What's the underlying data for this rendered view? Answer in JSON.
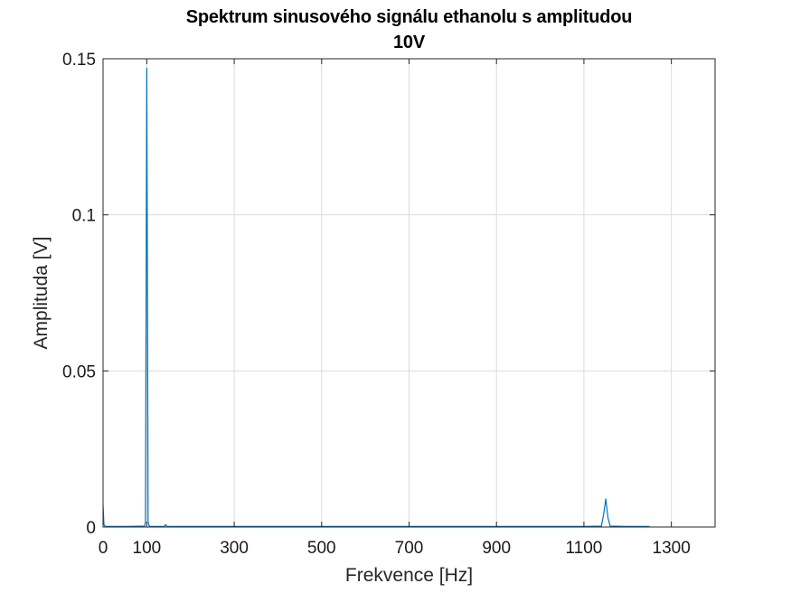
{
  "chart_data": {
    "type": "line",
    "title_line1": "Spektrum sinusového signálu ethanolu s amplitudou",
    "title_line2": "10V",
    "xlabel": "Frekvence [Hz]",
    "ylabel": "Amplituda [V]",
    "xlim": [
      0,
      1400
    ],
    "ylim": [
      0,
      0.15
    ],
    "xticks": [
      0,
      100,
      300,
      500,
      700,
      900,
      1100,
      1300
    ],
    "yticks": [
      0,
      0.05,
      0.1,
      0.15
    ],
    "xtick_labels": [
      "0",
      "100",
      "300",
      "500",
      "700",
      "900",
      "1100",
      "1300"
    ],
    "ytick_labels": [
      "0",
      "0.05",
      "0.1",
      "0.15"
    ],
    "grid": true,
    "series": [
      {
        "color": "#0072BD",
        "x": [
          0,
          2,
          4,
          6,
          50,
          95,
          97,
          98,
          100,
          102,
          103,
          105,
          108,
          140,
          143,
          146,
          200,
          300,
          400,
          500,
          600,
          700,
          800,
          900,
          1000,
          1100,
          1140,
          1145,
          1150,
          1155,
          1160,
          1200,
          1250
        ],
        "y": [
          0.007,
          0.0008,
          0.0003,
          0.0002,
          0.0002,
          0.0003,
          0.0015,
          0.05,
          0.147,
          0.06,
          0.002,
          0.0004,
          0.0002,
          0.0002,
          0.0008,
          0.0002,
          0.0002,
          0.0002,
          0.0002,
          0.0002,
          0.0002,
          0.0002,
          0.0002,
          0.0002,
          0.0002,
          0.0002,
          0.0003,
          0.004,
          0.009,
          0.003,
          0.0003,
          0.0002,
          0.0002
        ]
      }
    ]
  }
}
